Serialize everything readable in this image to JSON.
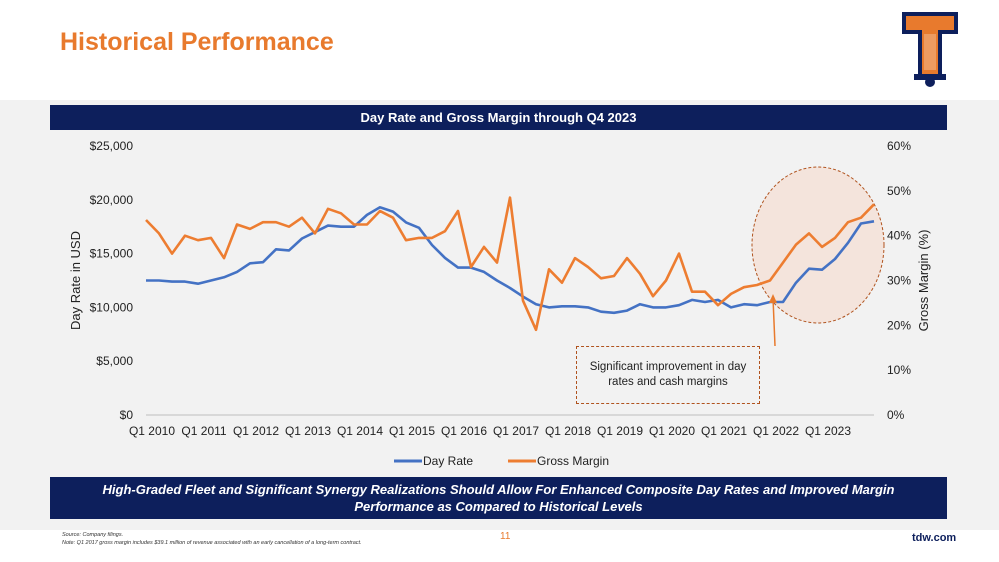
{
  "page": {
    "title": "Historical Performance",
    "page_number": "11",
    "site": "tdw.com",
    "footnote_source": "Source: Company filings.",
    "footnote_note": "Note: Q1 2017 gross margin includes $39.1 million of revenue associated with an early cancellation of a long-term contract.",
    "banner": "High-Graded Fleet and Significant Synergy Realizations Should Allow For Enhanced Composite Day Rates and Improved Margin Performance as Compared to Historical Levels",
    "callout": "Significant improvement in day rates and cash margins",
    "logo_icon": "tidewater-t-logo-icon"
  },
  "colors": {
    "accent": "#E87A2D",
    "navy": "#0d1f5c",
    "day_rate": "#4472C4",
    "gross_margin": "#ED7D31"
  },
  "chart_data": {
    "type": "line",
    "title": "Day Rate and Gross Margin through Q4 2023",
    "ylabel": "Day Rate in USD",
    "y2label": "Gross Margin (%)",
    "ylim": [
      0,
      25000
    ],
    "y2lim": [
      0,
      60
    ],
    "yticks": [
      "$0",
      "$5,000",
      "$10,000",
      "$15,000",
      "$20,000",
      "$25,000"
    ],
    "y2ticks": [
      "0%",
      "10%",
      "20%",
      "30%",
      "40%",
      "50%",
      "60%"
    ],
    "xticks": [
      "Q1 2010",
      "Q1 2011",
      "Q1 2012",
      "Q1 2013",
      "Q1 2014",
      "Q1 2015",
      "Q1 2016",
      "Q1 2017",
      "Q1 2018",
      "Q1 2019",
      "Q1 2020",
      "Q1 2021",
      "Q1 2022",
      "Q1 2023"
    ],
    "legend": "bottom",
    "grid": false,
    "series": [
      {
        "name": "Day Rate",
        "axis": "left",
        "values": [
          12500,
          12500,
          12400,
          12400,
          12200,
          12500,
          12800,
          13300,
          14100,
          14200,
          15400,
          15300,
          16400,
          17000,
          17600,
          17500,
          17500,
          18600,
          19300,
          18900,
          17900,
          17400,
          15800,
          14600,
          13700,
          13700,
          13300,
          12500,
          11800,
          11000,
          10300,
          10000,
          10100,
          10100,
          10000,
          9600,
          9500,
          9700,
          10300,
          10000,
          10000,
          10200,
          10700,
          10500,
          10700,
          10000,
          10300,
          10200,
          10500,
          10500,
          12300,
          13600,
          13500,
          14500,
          16000,
          17800,
          18000
        ]
      },
      {
        "name": "Gross Margin",
        "axis": "right",
        "values": [
          43.5,
          40.5,
          36,
          40,
          39,
          39.5,
          35,
          42.5,
          41.5,
          43,
          43,
          42,
          44,
          40.5,
          46,
          45,
          42.5,
          42.5,
          45.5,
          44,
          39,
          39.5,
          39.5,
          41,
          45.5,
          33,
          37.5,
          34,
          48.5,
          25.5,
          19,
          32.5,
          29.5,
          35,
          33,
          30.5,
          31,
          35,
          31.5,
          26.5,
          30,
          36,
          27.5,
          27.5,
          24.5,
          27,
          28.5,
          29,
          30,
          34,
          38,
          40.5,
          37.5,
          39.5,
          43,
          44,
          47
        ]
      }
    ]
  }
}
